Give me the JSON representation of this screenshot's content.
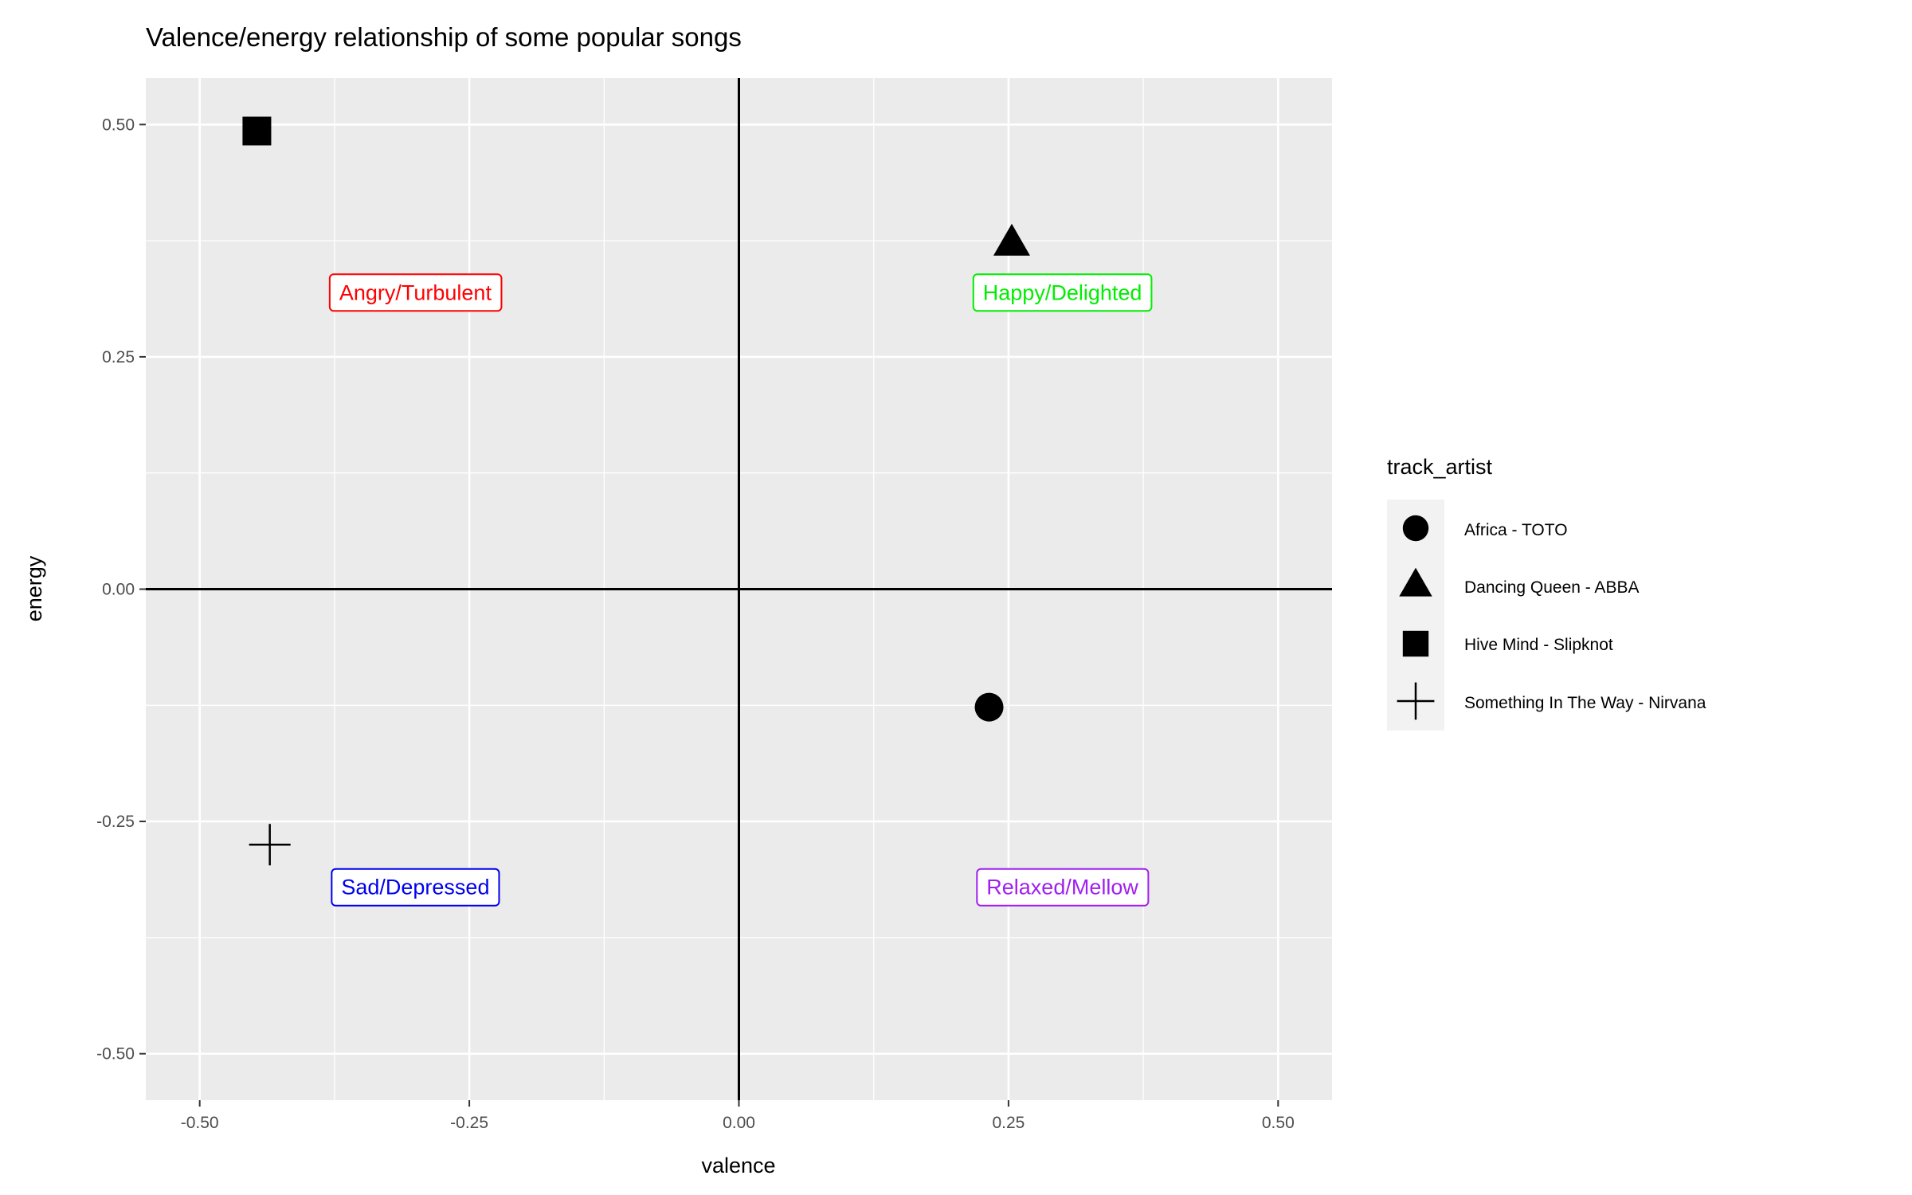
{
  "chart_data": {
    "type": "scatter",
    "title": "Valence/energy relationship of some popular songs",
    "xlabel": "valence",
    "ylabel": "energy",
    "xlim": [
      -0.55,
      0.55
    ],
    "ylim": [
      -0.55,
      0.55
    ],
    "x_ticks": [
      -0.5,
      -0.25,
      0.0,
      0.25,
      0.5
    ],
    "y_ticks": [
      -0.5,
      -0.25,
      0.0,
      0.25,
      0.5
    ],
    "x_tick_labels": [
      "-0.50",
      "-0.25",
      "0.00",
      "0.25",
      "0.50"
    ],
    "y_tick_labels": [
      "-0.50",
      "-0.25",
      "0.00",
      "0.25",
      "0.50"
    ],
    "grid": true,
    "background": "#ebebeb",
    "reference_lines": {
      "x": 0,
      "y": 0
    },
    "legend": {
      "title": "track_artist",
      "placement": "right",
      "entries": [
        {
          "label": "Africa - TOTO",
          "shape": "circle"
        },
        {
          "label": "Dancing Queen - ABBA",
          "shape": "triangle"
        },
        {
          "label": "Hive Mind - Slipknot",
          "shape": "square"
        },
        {
          "label": "Something In The Way - Nirvana",
          "shape": "plus"
        }
      ]
    },
    "series": [
      {
        "name": "Africa - TOTO",
        "shape": "circle",
        "x": 0.232,
        "y": -0.127
      },
      {
        "name": "Dancing Queen - ABBA",
        "shape": "triangle",
        "x": 0.253,
        "y": 0.372
      },
      {
        "name": "Hive Mind - Slipknot",
        "shape": "square",
        "x": -0.447,
        "y": 0.493
      },
      {
        "name": "Something In The Way - Nirvana",
        "shape": "plus",
        "x": -0.435,
        "y": -0.275
      }
    ],
    "annotations": [
      {
        "text": "Angry/Turbulent",
        "x": -0.3,
        "y": 0.32,
        "color": "#ff0000"
      },
      {
        "text": "Happy/Delighted",
        "x": 0.3,
        "y": 0.32,
        "color": "#00ee00"
      },
      {
        "text": "Sad/Depressed",
        "x": -0.3,
        "y": -0.32,
        "color": "#0000ee"
      },
      {
        "text": "Relaxed/Mellow",
        "x": 0.3,
        "y": -0.32,
        "color": "#a020f0"
      }
    ]
  }
}
